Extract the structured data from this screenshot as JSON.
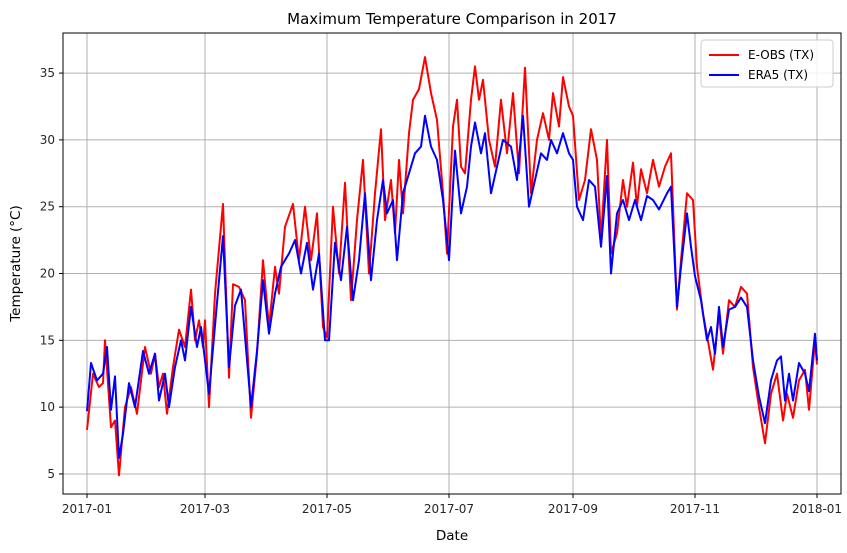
{
  "chart_data": {
    "type": "line",
    "title": "Maximum Temperature Comparison in 2017",
    "xlabel": "Date",
    "ylabel": "Temperature (°C)",
    "x_type": "date",
    "xlim": [
      "2016-12-20",
      "2018-01-13"
    ],
    "ylim": [
      3.5,
      38
    ],
    "xticks": [
      "2017-01",
      "2017-03",
      "2017-05",
      "2017-07",
      "2017-09",
      "2017-11",
      "2018-01"
    ],
    "yticks": [
      5,
      10,
      15,
      20,
      25,
      30,
      35
    ],
    "grid": true,
    "legend_position": "top-right",
    "series": [
      {
        "name": "E-OBS (TX)",
        "color": "#ff0000",
        "points": [
          [
            "2017-01-01",
            8.3
          ],
          [
            "2017-01-04",
            12.5
          ],
          [
            "2017-01-07",
            11.5
          ],
          [
            "2017-01-09",
            11.8
          ],
          [
            "2017-01-10",
            15.0
          ],
          [
            "2017-01-13",
            8.5
          ],
          [
            "2017-01-15",
            9.0
          ],
          [
            "2017-01-17",
            4.9
          ],
          [
            "2017-01-20",
            10.0
          ],
          [
            "2017-01-23",
            11.5
          ],
          [
            "2017-01-26",
            9.5
          ],
          [
            "2017-01-30",
            14.5
          ],
          [
            "2017-02-02",
            12.5
          ],
          [
            "2017-02-04",
            14.0
          ],
          [
            "2017-02-06",
            11.5
          ],
          [
            "2017-02-08",
            12.5
          ],
          [
            "2017-02-10",
            9.5
          ],
          [
            "2017-02-13",
            13.0
          ],
          [
            "2017-02-16",
            15.8
          ],
          [
            "2017-02-19",
            14.5
          ],
          [
            "2017-02-22",
            18.8
          ],
          [
            "2017-02-24",
            15.0
          ],
          [
            "2017-02-26",
            16.5
          ],
          [
            "2017-02-28",
            14.5
          ],
          [
            "2017-03-01",
            16.5
          ],
          [
            "2017-03-03",
            10.0
          ],
          [
            "2017-03-06",
            18.5
          ],
          [
            "2017-03-10",
            25.2
          ],
          [
            "2017-03-13",
            12.2
          ],
          [
            "2017-03-15",
            19.2
          ],
          [
            "2017-03-18",
            19.0
          ],
          [
            "2017-03-21",
            18.0
          ],
          [
            "2017-03-24",
            9.2
          ],
          [
            "2017-03-27",
            14.0
          ],
          [
            "2017-03-30",
            21.0
          ],
          [
            "2017-04-02",
            16.0
          ],
          [
            "2017-04-05",
            20.5
          ],
          [
            "2017-04-07",
            18.5
          ],
          [
            "2017-04-10",
            23.5
          ],
          [
            "2017-04-14",
            25.2
          ],
          [
            "2017-04-17",
            21.0
          ],
          [
            "2017-04-20",
            25.0
          ],
          [
            "2017-04-23",
            21.0
          ],
          [
            "2017-04-26",
            24.5
          ],
          [
            "2017-04-29",
            16.0
          ],
          [
            "2017-05-01",
            15.2
          ],
          [
            "2017-05-04",
            25.0
          ],
          [
            "2017-05-07",
            20.0
          ],
          [
            "2017-05-10",
            26.8
          ],
          [
            "2017-05-13",
            18.0
          ],
          [
            "2017-05-16",
            24.0
          ],
          [
            "2017-05-19",
            28.5
          ],
          [
            "2017-05-22",
            20.0
          ],
          [
            "2017-05-25",
            26.0
          ],
          [
            "2017-05-28",
            30.8
          ],
          [
            "2017-05-30",
            24.0
          ],
          [
            "2017-06-02",
            27.0
          ],
          [
            "2017-06-04",
            23.0
          ],
          [
            "2017-06-06",
            28.5
          ],
          [
            "2017-06-08",
            24.5
          ],
          [
            "2017-06-11",
            30.5
          ],
          [
            "2017-06-13",
            33.0
          ],
          [
            "2017-06-16",
            33.8
          ],
          [
            "2017-06-19",
            36.2
          ],
          [
            "2017-06-22",
            33.5
          ],
          [
            "2017-06-25",
            31.5
          ],
          [
            "2017-06-28",
            26.0
          ],
          [
            "2017-06-30",
            21.5
          ],
          [
            "2017-07-03",
            31.0
          ],
          [
            "2017-07-05",
            33.0
          ],
          [
            "2017-07-07",
            28.0
          ],
          [
            "2017-07-09",
            27.5
          ],
          [
            "2017-07-12",
            33.0
          ],
          [
            "2017-07-14",
            35.5
          ],
          [
            "2017-07-16",
            33.0
          ],
          [
            "2017-07-18",
            34.5
          ],
          [
            "2017-07-21",
            30.0
          ],
          [
            "2017-07-24",
            28.0
          ],
          [
            "2017-07-27",
            33.0
          ],
          [
            "2017-07-30",
            29.0
          ],
          [
            "2017-08-02",
            33.5
          ],
          [
            "2017-08-05",
            27.5
          ],
          [
            "2017-08-08",
            35.4
          ],
          [
            "2017-08-11",
            26.0
          ],
          [
            "2017-08-14",
            30.0
          ],
          [
            "2017-08-17",
            32.0
          ],
          [
            "2017-08-20",
            30.0
          ],
          [
            "2017-08-22",
            33.5
          ],
          [
            "2017-08-25",
            31.0
          ],
          [
            "2017-08-27",
            34.7
          ],
          [
            "2017-08-30",
            32.5
          ],
          [
            "2017-09-01",
            31.8
          ],
          [
            "2017-09-04",
            25.5
          ],
          [
            "2017-09-07",
            27.0
          ],
          [
            "2017-09-10",
            30.8
          ],
          [
            "2017-09-13",
            28.5
          ],
          [
            "2017-09-15",
            22.5
          ],
          [
            "2017-09-18",
            30.0
          ],
          [
            "2017-09-20",
            21.5
          ],
          [
            "2017-09-23",
            23.0
          ],
          [
            "2017-09-26",
            27.0
          ],
          [
            "2017-09-28",
            25.0
          ],
          [
            "2017-10-01",
            28.3
          ],
          [
            "2017-10-03",
            25.0
          ],
          [
            "2017-10-05",
            27.8
          ],
          [
            "2017-10-08",
            26.0
          ],
          [
            "2017-10-11",
            28.5
          ],
          [
            "2017-10-14",
            26.5
          ],
          [
            "2017-10-17",
            28.0
          ],
          [
            "2017-10-20",
            29.0
          ],
          [
            "2017-10-23",
            17.3
          ],
          [
            "2017-10-25",
            21.0
          ],
          [
            "2017-10-28",
            26.0
          ],
          [
            "2017-10-31",
            25.5
          ],
          [
            "2017-11-02",
            20.5
          ],
          [
            "2017-11-05",
            17.0
          ],
          [
            "2017-11-08",
            14.5
          ],
          [
            "2017-11-10",
            12.8
          ],
          [
            "2017-11-13",
            17.0
          ],
          [
            "2017-11-15",
            14.0
          ],
          [
            "2017-11-18",
            18.0
          ],
          [
            "2017-11-21",
            17.5
          ],
          [
            "2017-11-24",
            19.0
          ],
          [
            "2017-11-27",
            18.5
          ],
          [
            "2017-11-30",
            13.0
          ],
          [
            "2017-12-03",
            10.0
          ],
          [
            "2017-12-06",
            7.3
          ],
          [
            "2017-12-09",
            11.0
          ],
          [
            "2017-12-12",
            12.5
          ],
          [
            "2017-12-15",
            9.0
          ],
          [
            "2017-12-17",
            11.0
          ],
          [
            "2017-12-20",
            9.2
          ],
          [
            "2017-12-23",
            12.0
          ],
          [
            "2017-12-26",
            12.8
          ],
          [
            "2017-12-28",
            9.8
          ],
          [
            "2017-12-31",
            15.0
          ],
          [
            "2018-01-01",
            13.2
          ]
        ]
      },
      {
        "name": "ERA5 (TX)",
        "color": "#0000ff",
        "points": [
          [
            "2017-01-01",
            9.7
          ],
          [
            "2017-01-03",
            13.3
          ],
          [
            "2017-01-06",
            12.0
          ],
          [
            "2017-01-09",
            12.5
          ],
          [
            "2017-01-11",
            14.5
          ],
          [
            "2017-01-13",
            9.8
          ],
          [
            "2017-01-15",
            12.3
          ],
          [
            "2017-01-17",
            6.2
          ],
          [
            "2017-01-19",
            8.0
          ],
          [
            "2017-01-22",
            11.8
          ],
          [
            "2017-01-25",
            10.0
          ],
          [
            "2017-01-29",
            14.2
          ],
          [
            "2017-02-01",
            12.5
          ],
          [
            "2017-02-04",
            14.0
          ],
          [
            "2017-02-06",
            10.5
          ],
          [
            "2017-02-09",
            12.5
          ],
          [
            "2017-02-11",
            10.0
          ],
          [
            "2017-02-14",
            13.0
          ],
          [
            "2017-02-17",
            15.0
          ],
          [
            "2017-02-19",
            13.5
          ],
          [
            "2017-02-22",
            17.5
          ],
          [
            "2017-02-25",
            14.5
          ],
          [
            "2017-02-27",
            16.0
          ],
          [
            "2017-03-01",
            13.5
          ],
          [
            "2017-03-03",
            11.0
          ],
          [
            "2017-03-07",
            17.8
          ],
          [
            "2017-03-10",
            22.8
          ],
          [
            "2017-03-13",
            13.0
          ],
          [
            "2017-03-16",
            17.6
          ],
          [
            "2017-03-19",
            18.8
          ],
          [
            "2017-03-24",
            10.0
          ],
          [
            "2017-03-27",
            14.2
          ],
          [
            "2017-03-30",
            19.5
          ],
          [
            "2017-04-02",
            15.5
          ],
          [
            "2017-04-05",
            18.5
          ],
          [
            "2017-04-08",
            20.5
          ],
          [
            "2017-04-12",
            21.5
          ],
          [
            "2017-04-15",
            22.5
          ],
          [
            "2017-04-18",
            20.0
          ],
          [
            "2017-04-21",
            22.3
          ],
          [
            "2017-04-24",
            18.8
          ],
          [
            "2017-04-27",
            21.5
          ],
          [
            "2017-04-30",
            15.0
          ],
          [
            "2017-05-02",
            15.0
          ],
          [
            "2017-05-05",
            22.3
          ],
          [
            "2017-05-08",
            19.5
          ],
          [
            "2017-05-11",
            23.5
          ],
          [
            "2017-05-14",
            18.0
          ],
          [
            "2017-05-17",
            21.0
          ],
          [
            "2017-05-20",
            26.0
          ],
          [
            "2017-05-23",
            19.5
          ],
          [
            "2017-05-26",
            24.0
          ],
          [
            "2017-05-29",
            27.0
          ],
          [
            "2017-05-31",
            24.5
          ],
          [
            "2017-06-03",
            25.5
          ],
          [
            "2017-06-05",
            21.0
          ],
          [
            "2017-06-08",
            26.0
          ],
          [
            "2017-06-11",
            27.5
          ],
          [
            "2017-06-14",
            29.0
          ],
          [
            "2017-06-17",
            29.5
          ],
          [
            "2017-06-19",
            31.8
          ],
          [
            "2017-06-22",
            29.5
          ],
          [
            "2017-06-25",
            28.5
          ],
          [
            "2017-06-28",
            25.5
          ],
          [
            "2017-07-01",
            21.0
          ],
          [
            "2017-07-04",
            29.2
          ],
          [
            "2017-07-07",
            24.5
          ],
          [
            "2017-07-10",
            26.5
          ],
          [
            "2017-07-12",
            29.5
          ],
          [
            "2017-07-14",
            31.3
          ],
          [
            "2017-07-17",
            29.0
          ],
          [
            "2017-07-19",
            30.5
          ],
          [
            "2017-07-22",
            26.0
          ],
          [
            "2017-07-25",
            28.0
          ],
          [
            "2017-07-28",
            30.0
          ],
          [
            "2017-08-01",
            29.5
          ],
          [
            "2017-08-04",
            27.0
          ],
          [
            "2017-08-07",
            31.8
          ],
          [
            "2017-08-10",
            25.0
          ],
          [
            "2017-08-13",
            27.0
          ],
          [
            "2017-08-16",
            29.0
          ],
          [
            "2017-08-19",
            28.5
          ],
          [
            "2017-08-21",
            30.0
          ],
          [
            "2017-08-24",
            29.0
          ],
          [
            "2017-08-27",
            30.5
          ],
          [
            "2017-08-30",
            29.0
          ],
          [
            "2017-09-01",
            28.5
          ],
          [
            "2017-09-03",
            25.0
          ],
          [
            "2017-09-06",
            24.0
          ],
          [
            "2017-09-09",
            27.0
          ],
          [
            "2017-09-12",
            26.5
          ],
          [
            "2017-09-15",
            22.0
          ],
          [
            "2017-09-18",
            27.3
          ],
          [
            "2017-09-20",
            20.0
          ],
          [
            "2017-09-23",
            24.5
          ],
          [
            "2017-09-26",
            25.5
          ],
          [
            "2017-09-29",
            24.0
          ],
          [
            "2017-10-02",
            25.5
          ],
          [
            "2017-10-05",
            24.0
          ],
          [
            "2017-10-08",
            25.8
          ],
          [
            "2017-10-11",
            25.5
          ],
          [
            "2017-10-14",
            24.8
          ],
          [
            "2017-10-18",
            26.0
          ],
          [
            "2017-10-20",
            26.5
          ],
          [
            "2017-10-23",
            17.5
          ],
          [
            "2017-10-25",
            20.5
          ],
          [
            "2017-10-28",
            24.5
          ],
          [
            "2017-10-30",
            22.0
          ],
          [
            "2017-11-01",
            19.8
          ],
          [
            "2017-11-04",
            18.0
          ],
          [
            "2017-11-07",
            15.0
          ],
          [
            "2017-11-09",
            16.0
          ],
          [
            "2017-11-11",
            14.0
          ],
          [
            "2017-11-13",
            17.5
          ],
          [
            "2017-11-15",
            14.5
          ],
          [
            "2017-11-18",
            17.3
          ],
          [
            "2017-11-21",
            17.5
          ],
          [
            "2017-11-24",
            18.2
          ],
          [
            "2017-11-27",
            17.5
          ],
          [
            "2017-11-30",
            13.5
          ],
          [
            "2017-12-03",
            10.8
          ],
          [
            "2017-12-06",
            8.8
          ],
          [
            "2017-12-09",
            12.0
          ],
          [
            "2017-12-12",
            13.5
          ],
          [
            "2017-12-14",
            13.8
          ],
          [
            "2017-12-16",
            10.5
          ],
          [
            "2017-12-18",
            12.5
          ],
          [
            "2017-12-20",
            10.5
          ],
          [
            "2017-12-23",
            13.3
          ],
          [
            "2017-12-26",
            12.5
          ],
          [
            "2017-12-28",
            11.2
          ],
          [
            "2017-12-31",
            15.5
          ],
          [
            "2018-01-01",
            13.5
          ]
        ]
      }
    ]
  }
}
